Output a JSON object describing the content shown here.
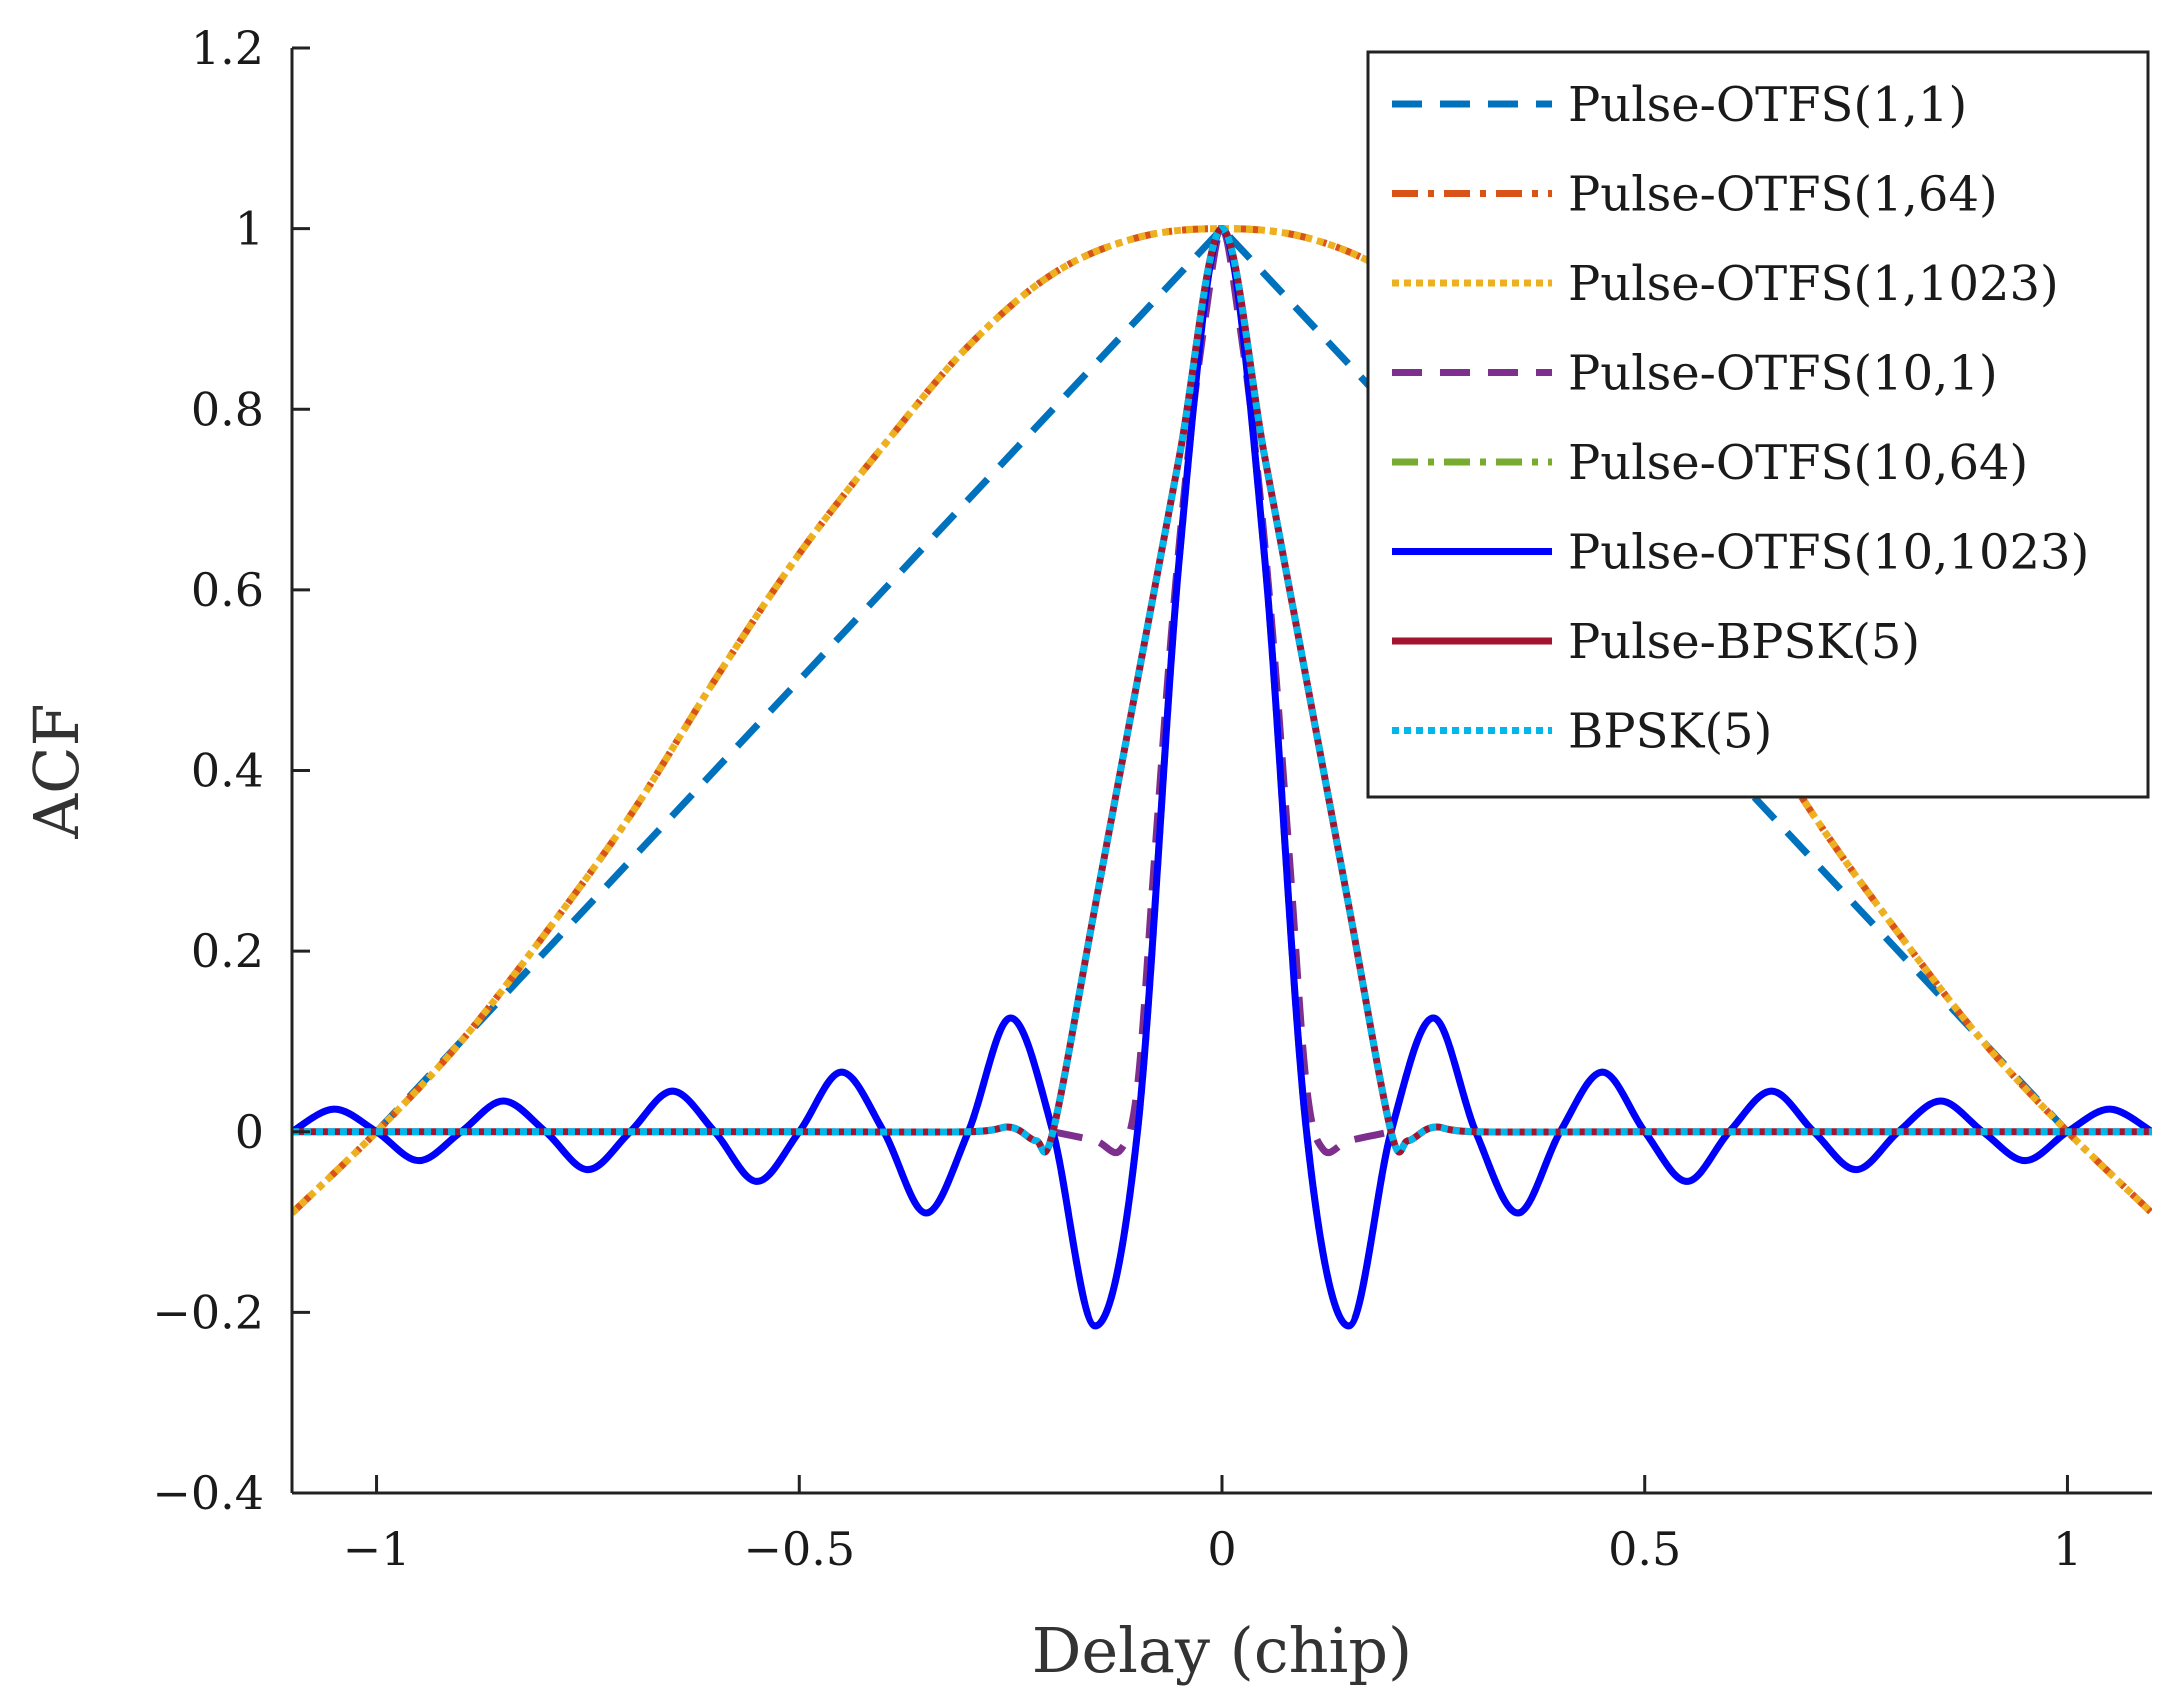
{
  "chart_data": {
    "type": "line",
    "title": "",
    "xlabel": "Delay (chip)",
    "ylabel": "ACF",
    "xlim": [
      -1.1,
      1.1
    ],
    "ylim": [
      -0.4,
      1.2
    ],
    "xticks": [
      -1,
      -0.5,
      0,
      0.5,
      1
    ],
    "xtick_labels": [
      "−1",
      "−0.5",
      "0",
      "0.5",
      "1"
    ],
    "yticks": [
      -0.4,
      -0.2,
      0,
      0.2,
      0.4,
      0.6,
      0.8,
      1,
      1.2
    ],
    "ytick_labels": [
      "−0.4",
      "−0.2",
      "0",
      "0.2",
      "0.4",
      "0.6",
      "0.8",
      "1",
      "1.2"
    ],
    "grid": false,
    "legend_position": "top-right",
    "series": [
      {
        "name": "Pulse-OTFS(1,1)",
        "color": "#0072BD",
        "style": "dashed",
        "x": [
          -1.0,
          -0.8,
          -0.6,
          -0.4,
          -0.2,
          0,
          0.2,
          0.4,
          0.6,
          0.8,
          1.0
        ],
        "y": [
          0,
          0.2,
          0.4,
          0.6,
          0.8,
          1.0,
          0.8,
          0.6,
          0.4,
          0.2,
          0
        ]
      },
      {
        "name": "Pulse-OTFS(1,64)",
        "color": "#D95319",
        "style": "dashdot",
        "x": [
          -1.1,
          -1.0,
          -0.9,
          -0.8,
          -0.7,
          -0.6,
          -0.5,
          -0.4,
          -0.3,
          -0.2,
          -0.1,
          0,
          0.1,
          0.2,
          0.3,
          0.4,
          0.5,
          0.6,
          0.7,
          0.8,
          0.9,
          1.0,
          1.1
        ],
        "y": [
          -0.09,
          0,
          0.1,
          0.22,
          0.35,
          0.5,
          0.64,
          0.76,
          0.87,
          0.95,
          0.99,
          1.0,
          0.99,
          0.95,
          0.87,
          0.76,
          0.64,
          0.5,
          0.35,
          0.22,
          0.1,
          0,
          -0.09
        ]
      },
      {
        "name": "Pulse-OTFS(1,1023)",
        "color": "#EDB120",
        "style": "dotted",
        "x": [
          -1.1,
          -1.0,
          -0.9,
          -0.8,
          -0.7,
          -0.6,
          -0.5,
          -0.4,
          -0.3,
          -0.2,
          -0.1,
          0,
          0.1,
          0.2,
          0.3,
          0.4,
          0.5,
          0.6,
          0.7,
          0.8,
          0.9,
          1.0,
          1.1
        ],
        "y": [
          -0.09,
          0,
          0.1,
          0.22,
          0.35,
          0.5,
          0.64,
          0.76,
          0.87,
          0.95,
          0.99,
          1.0,
          0.99,
          0.95,
          0.87,
          0.76,
          0.64,
          0.5,
          0.35,
          0.22,
          0.1,
          0,
          -0.09
        ]
      },
      {
        "name": "Pulse-OTFS(10,1)",
        "color": "#7E2F8E",
        "style": "dashed",
        "x": [
          -0.2,
          -0.15,
          -0.12,
          -0.1,
          -0.08,
          -0.06,
          -0.04,
          -0.02,
          0,
          0.02,
          0.04,
          0.06,
          0.08,
          0.1,
          0.12,
          0.15,
          0.2
        ],
        "y": [
          0,
          -0.01,
          -0.02,
          0.05,
          0.3,
          0.55,
          0.75,
          0.9,
          1.0,
          0.9,
          0.75,
          0.55,
          0.3,
          0.05,
          -0.02,
          -0.01,
          0
        ]
      },
      {
        "name": "Pulse-OTFS(10,64)",
        "color": "#77AC30",
        "style": "dashdot",
        "x": [
          -1.1,
          -1.05,
          -1.0,
          -0.95,
          -0.9,
          -0.85,
          -0.8,
          -0.75,
          -0.7,
          -0.65,
          -0.6,
          -0.55,
          -0.5,
          -0.45,
          -0.4,
          -0.35,
          -0.3,
          -0.25,
          -0.2,
          -0.15,
          -0.1,
          -0.05,
          0,
          0.05,
          0.1,
          0.15,
          0.2,
          0.25,
          0.3,
          0.35,
          0.4,
          0.45,
          0.5,
          0.55,
          0.6,
          0.65,
          0.7,
          0.75,
          0.8,
          0.85,
          0.9,
          0.95,
          1.0,
          1.05,
          1.1
        ],
        "y": [
          0,
          0.025,
          0,
          -0.032,
          0,
          0.034,
          0,
          -0.042,
          0,
          0.045,
          0,
          -0.055,
          0,
          0.066,
          0,
          -0.09,
          0,
          0.126,
          0,
          -0.215,
          0,
          0.64,
          1.0,
          0.64,
          0,
          -0.215,
          0,
          0.126,
          0,
          -0.09,
          0,
          0.066,
          0,
          -0.055,
          0,
          0.045,
          0,
          -0.042,
          0,
          0.034,
          0,
          -0.032,
          0,
          0.025,
          0
        ]
      },
      {
        "name": "Pulse-OTFS(10,1023)",
        "color": "#0000FF",
        "style": "solid",
        "x": [
          -1.1,
          -1.05,
          -1.0,
          -0.95,
          -0.9,
          -0.85,
          -0.8,
          -0.75,
          -0.7,
          -0.65,
          -0.6,
          -0.55,
          -0.5,
          -0.45,
          -0.4,
          -0.35,
          -0.3,
          -0.25,
          -0.2,
          -0.15,
          -0.1,
          -0.05,
          0,
          0.05,
          0.1,
          0.15,
          0.2,
          0.25,
          0.3,
          0.35,
          0.4,
          0.45,
          0.5,
          0.55,
          0.6,
          0.65,
          0.7,
          0.75,
          0.8,
          0.85,
          0.9,
          0.95,
          1.0,
          1.05,
          1.1
        ],
        "y": [
          0,
          0.025,
          0,
          -0.032,
          0,
          0.034,
          0,
          -0.042,
          0,
          0.045,
          0,
          -0.055,
          0,
          0.066,
          0,
          -0.09,
          0,
          0.126,
          0,
          -0.215,
          0,
          0.64,
          1.0,
          0.64,
          0,
          -0.215,
          0,
          0.126,
          0,
          -0.09,
          0,
          0.066,
          0,
          -0.055,
          0,
          0.045,
          0,
          -0.042,
          0,
          0.034,
          0,
          -0.032,
          0,
          0.025,
          0
        ]
      },
      {
        "name": "Pulse-BPSK(5)",
        "color": "#A2142F",
        "style": "solid",
        "x": [
          -1.1,
          -0.9,
          -0.7,
          -0.5,
          -0.3,
          -0.25,
          -0.22,
          -0.2,
          -0.15,
          -0.1,
          -0.05,
          0,
          0.05,
          0.1,
          0.15,
          0.2,
          0.22,
          0.25,
          0.3,
          0.5,
          0.7,
          0.9,
          1.1
        ],
        "y": [
          0,
          0,
          0,
          0,
          0,
          0.005,
          -0.01,
          0,
          0.25,
          0.5,
          0.75,
          1.0,
          0.75,
          0.5,
          0.25,
          0,
          -0.01,
          0.005,
          0,
          0,
          0,
          0,
          0
        ]
      },
      {
        "name": "BPSK(5)",
        "color": "#00B7EB",
        "style": "dotted",
        "x": [
          -1.1,
          -0.9,
          -0.7,
          -0.5,
          -0.3,
          -0.25,
          -0.22,
          -0.2,
          -0.15,
          -0.1,
          -0.05,
          0,
          0.05,
          0.1,
          0.15,
          0.2,
          0.22,
          0.25,
          0.3,
          0.5,
          0.7,
          0.9,
          1.1
        ],
        "y": [
          0,
          0,
          0,
          0,
          0,
          0.005,
          -0.01,
          0,
          0.25,
          0.5,
          0.75,
          1.0,
          0.75,
          0.5,
          0.25,
          0,
          -0.01,
          0.005,
          0,
          0,
          0,
          0,
          0
        ]
      }
    ]
  }
}
